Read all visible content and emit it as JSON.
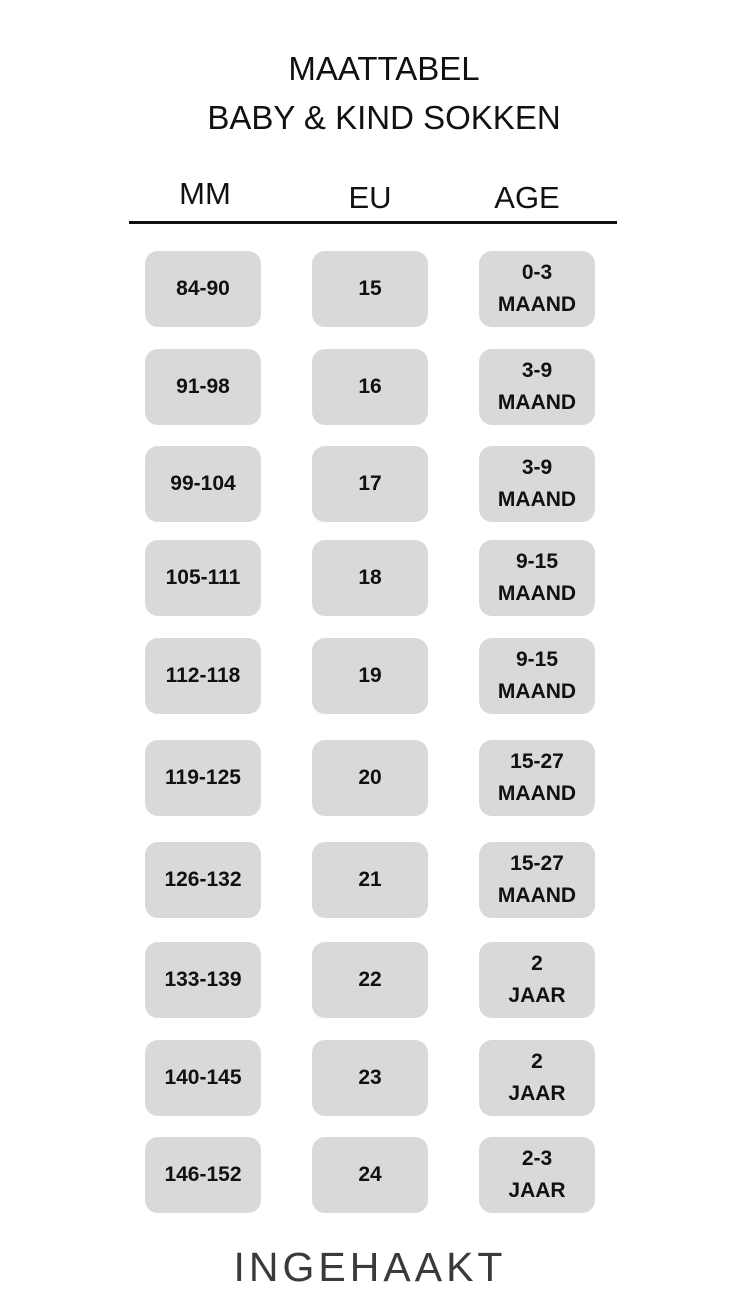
{
  "title": {
    "line1": "MAATTABEL",
    "line2": "BABY & KIND SOKKEN"
  },
  "columns": {
    "mm": "MM",
    "eu": "EU",
    "age": "AGE"
  },
  "rows": [
    {
      "mm": "84-90",
      "eu": "15",
      "age1": "0-3",
      "age2": "MAAND"
    },
    {
      "mm": "91-98",
      "eu": "16",
      "age1": "3-9",
      "age2": "MAAND"
    },
    {
      "mm": "99-104",
      "eu": "17",
      "age1": "3-9",
      "age2": "MAAND"
    },
    {
      "mm": "105-111",
      "eu": "18",
      "age1": "9-15",
      "age2": "MAAND"
    },
    {
      "mm": "112-118",
      "eu": "19",
      "age1": "9-15",
      "age2": "MAAND"
    },
    {
      "mm": "119-125",
      "eu": "20",
      "age1": "15-27",
      "age2": "MAAND"
    },
    {
      "mm": "126-132",
      "eu": "21",
      "age1": "15-27",
      "age2": "MAAND"
    },
    {
      "mm": "133-139",
      "eu": "22",
      "age1": "2",
      "age2": "JAAR"
    },
    {
      "mm": "140-145",
      "eu": "23",
      "age1": "2",
      "age2": "JAAR"
    },
    {
      "mm": "146-152",
      "eu": "24",
      "age1": "2-3",
      "age2": "JAAR"
    }
  ],
  "brand": "INGEHAAKT",
  "colors": {
    "cell_bg": "#d9d9d9",
    "text": "#111111",
    "brand": "#3a3a3a"
  }
}
